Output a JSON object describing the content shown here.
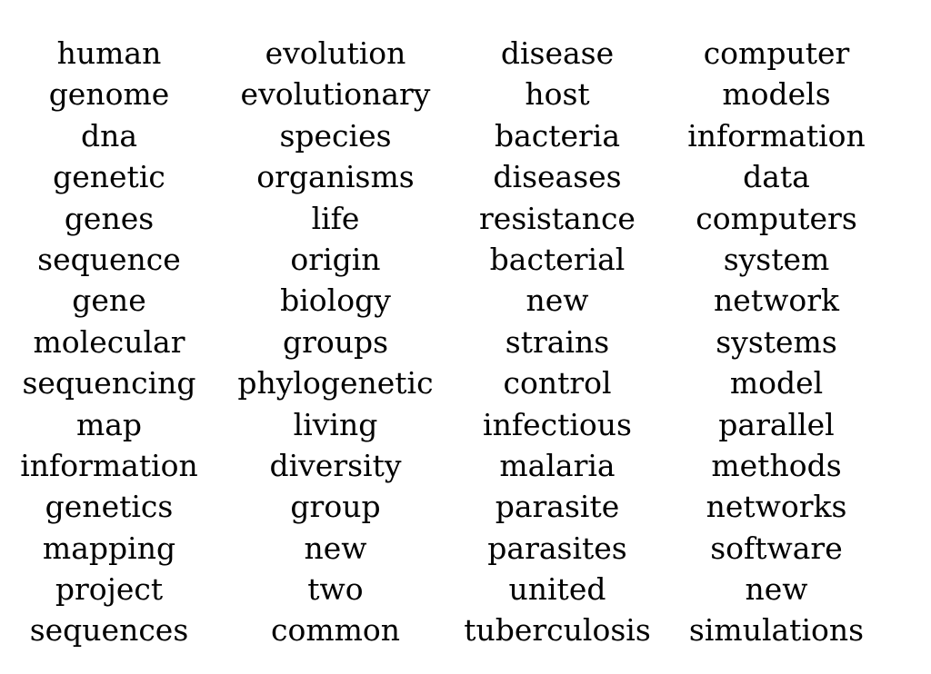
{
  "columns": [
    {
      "words": [
        "human",
        "genome",
        "dna",
        "genetic",
        "genes",
        "sequence",
        "gene",
        "molecular",
        "sequencing",
        "map",
        "information",
        "genetics",
        "mapping",
        "project",
        "sequences"
      ]
    },
    {
      "words": [
        "evolution",
        "evolutionary",
        "species",
        "organisms",
        "life",
        "origin",
        "biology",
        "groups",
        "phylogenetic",
        "living",
        "diversity",
        "group",
        "new",
        "two",
        "common"
      ]
    },
    {
      "words": [
        "disease",
        "host",
        "bacteria",
        "diseases",
        "resistance",
        "bacterial",
        "new",
        "strains",
        "control",
        "infectious",
        "malaria",
        "parasite",
        "parasites",
        "united",
        "tuberculosis"
      ]
    },
    {
      "words": [
        "computer",
        "models",
        "information",
        "data",
        "computers",
        "system",
        "network",
        "systems",
        "model",
        "parallel",
        "methods",
        "networks",
        "software",
        "new",
        "simulations"
      ]
    }
  ]
}
